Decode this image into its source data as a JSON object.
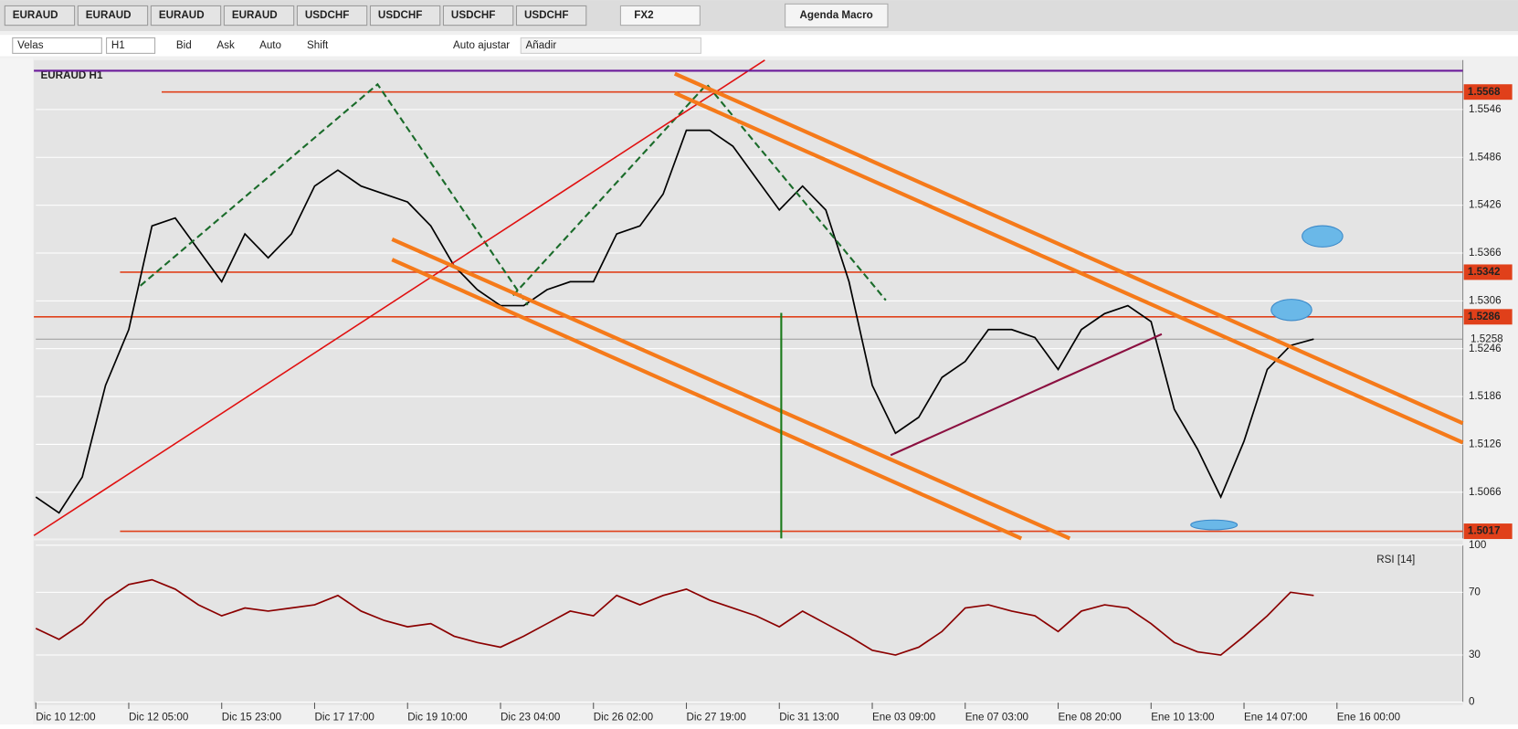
{
  "tabs": [
    "EURAUD",
    "EURAUD",
    "EURAUD",
    "EURAUD",
    "USDCHF",
    "USDCHF",
    "USDCHF",
    "USDCHF"
  ],
  "toolbar": {
    "workspace": "FX2",
    "panel": "Agenda Macro",
    "chart_type": "Velas",
    "period": "H1",
    "bid": "Bid",
    "ask": "Ask",
    "auto": "Auto",
    "shift": "Shift",
    "auto_fit": "Auto ajustar",
    "add": "Añadir"
  },
  "chart_data": [
    {
      "type": "line",
      "title": "EURAUD H1",
      "color": "#000000",
      "categories": [
        "Dic 10 12:00",
        null,
        null,
        null,
        "Dic 12 05:00",
        null,
        null,
        null,
        "Dic 15 23:00",
        null,
        null,
        null,
        "Dic 17 17:00",
        null,
        null,
        null,
        "Dic 19 10:00",
        null,
        null,
        null,
        "Dic 23 04:00",
        null,
        null,
        null,
        "Dic 26 02:00",
        null,
        null,
        null,
        "Dic 27 19:00",
        null,
        null,
        null,
        "Dic 31 13:00",
        null,
        null,
        null,
        "Ene 03 09:00",
        null,
        null,
        null,
        "Ene 07 03:00",
        null,
        null,
        null,
        "Ene 08 20:00",
        null,
        null,
        null,
        "Ene 10 13:00",
        null,
        null,
        null,
        "Ene 14 07:00",
        null,
        null,
        null,
        "Ene 16 00:00"
      ],
      "values": [
        1.506,
        1.504,
        1.5085,
        1.52,
        1.527,
        1.54,
        1.541,
        1.537,
        1.533,
        1.539,
        1.536,
        1.539,
        1.545,
        1.547,
        1.545,
        1.544,
        1.543,
        1.54,
        1.535,
        1.532,
        1.53,
        1.53,
        1.532,
        1.533,
        1.533,
        1.539,
        1.54,
        1.544,
        1.552,
        1.552,
        1.55,
        1.546,
        1.542,
        1.545,
        1.542,
        1.533,
        1.52,
        1.514,
        1.516,
        1.521,
        1.523,
        1.527,
        1.527,
        1.526,
        1.522,
        1.527,
        1.529,
        1.53,
        1.528,
        1.517,
        1.512,
        1.506,
        1.513,
        1.522,
        1.525,
        1.5258,
        null
      ],
      "ylim": [
        1.5008,
        1.5608
      ],
      "yticks": [
        1.5066,
        1.5126,
        1.5186,
        1.5246,
        1.5306,
        1.5366,
        1.5426,
        1.5486,
        1.5546
      ],
      "levels": [
        1.5568,
        1.5342,
        1.5286,
        1.5017
      ],
      "level_color": "#e0401a",
      "last_price": 1.5258,
      "grid": true
    },
    {
      "type": "line",
      "title": "RSI [14]",
      "color": "#8b0000",
      "values": [
        47,
        40,
        50,
        65,
        75,
        78,
        72,
        62,
        55,
        60,
        58,
        60,
        62,
        68,
        58,
        52,
        48,
        50,
        42,
        38,
        35,
        42,
        50,
        58,
        55,
        68,
        62,
        68,
        72,
        65,
        60,
        55,
        48,
        58,
        50,
        42,
        33,
        30,
        35,
        45,
        60,
        62,
        58,
        55,
        45,
        58,
        62,
        60,
        50,
        38,
        32,
        30,
        42,
        55,
        70,
        68,
        null
      ],
      "ylim": [
        0,
        100
      ],
      "yticks": [
        0,
        30,
        70,
        100
      ],
      "grid": true
    }
  ]
}
